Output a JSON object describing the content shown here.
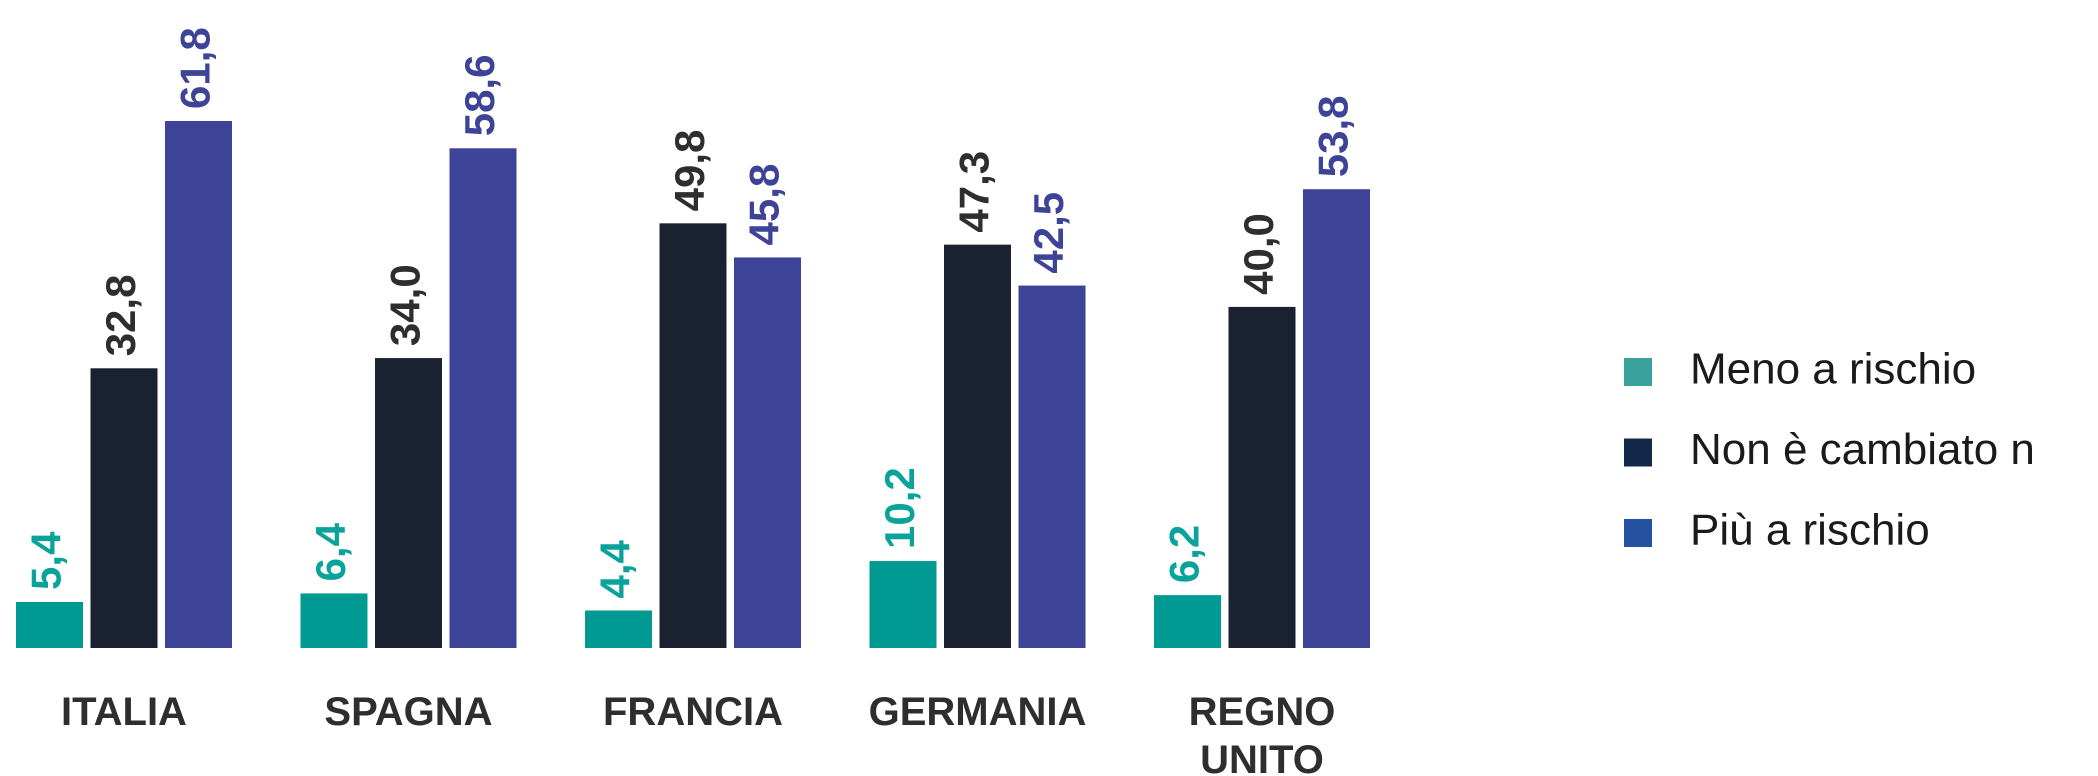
{
  "chart_data": {
    "type": "bar",
    "categories": [
      "ITALIA",
      "SPAGNA",
      "FRANCIA",
      "GERMANIA",
      "REGNO UNITO"
    ],
    "series": [
      {
        "name": "Meno a rischio",
        "color": "#009a93",
        "label_color": "#0aa39c",
        "legend_color": "#3aa09b",
        "values": [
          5.4,
          6.4,
          4.4,
          10.2,
          6.2
        ],
        "value_labels": [
          "5,4",
          "6,4",
          "4,4",
          "10,2",
          "6,2"
        ]
      },
      {
        "name": "Non è cambiato n",
        "color": "#1a2130",
        "label_color": "#2e2e2e",
        "legend_color": "#14294a",
        "values": [
          32.8,
          34.0,
          49.8,
          47.3,
          40.0
        ],
        "value_labels": [
          "32,8",
          "34,0",
          "49,8",
          "47,3",
          "40,0"
        ]
      },
      {
        "name": "Più a rischio",
        "color": "#3d4397",
        "label_color": "#3d4397",
        "legend_color": "#2451a0",
        "values": [
          61.8,
          58.6,
          45.8,
          42.5,
          53.8
        ],
        "value_labels": [
          "61,8",
          "58,6",
          "45,8",
          "42,5",
          "53,8"
        ]
      }
    ],
    "legend": "right"
  }
}
